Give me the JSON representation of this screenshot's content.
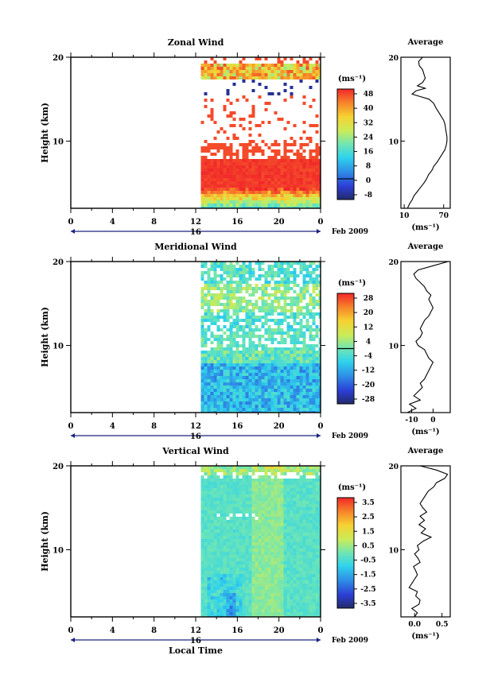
{
  "chart_data": [
    {
      "type": "heatmap",
      "title": "Zonal Wind",
      "ylabel": "Height (km)",
      "yticks": [
        "20",
        "10"
      ],
      "ylim": [
        2,
        20
      ],
      "xticks": [
        "0",
        "4",
        "8",
        "12",
        "16",
        "20",
        "0"
      ],
      "xlim": [
        0,
        24
      ],
      "date_day": "16",
      "date_label": "Feb 2009",
      "data_start_hour": 12.5,
      "colorbar": {
        "unit": "(ms⁻¹)",
        "ticks": [
          "48",
          "40",
          "32",
          "24",
          "16",
          "8",
          "0",
          "-8"
        ],
        "range": [
          -12,
          52
        ],
        "zero_contour": 0
      },
      "profile": {
        "title": "Average",
        "unit": "(ms⁻¹)",
        "xticks": [
          "10",
          "70"
        ],
        "yticks": [
          "20",
          "10"
        ],
        "xlim": [
          5,
          80
        ],
        "ylim": [
          2,
          20
        ],
        "heights": [
          2.0,
          2.5,
          3.0,
          3.5,
          4.0,
          4.5,
          5.0,
          5.5,
          6.0,
          6.5,
          7.0,
          7.5,
          8.0,
          8.5,
          9.0,
          9.5,
          10.0,
          10.5,
          11.0,
          11.5,
          12.0,
          12.5,
          13.0,
          13.5,
          14.0,
          14.5,
          15.0,
          15.3,
          15.6,
          16.0,
          16.3,
          16.6,
          17.0,
          17.5,
          18.0,
          18.5,
          19.0,
          19.5,
          20.0
        ],
        "values": [
          15,
          18,
          22,
          25,
          30,
          35,
          40,
          44,
          47,
          52,
          55,
          60,
          64,
          68,
          72,
          74,
          75,
          75,
          74,
          73,
          72,
          70,
          66,
          62,
          58,
          55,
          48,
          35,
          22,
          28,
          42,
          30,
          38,
          42,
          40,
          38,
          33,
          32,
          38
        ]
      }
    },
    {
      "type": "heatmap",
      "title": "Meridional Wind",
      "ylabel": "Height (km)",
      "yticks": [
        "20",
        "10"
      ],
      "ylim": [
        2,
        20
      ],
      "xticks": [
        "0",
        "4",
        "8",
        "12",
        "16",
        "20",
        "0"
      ],
      "xlim": [
        0,
        24
      ],
      "date_day": "16",
      "date_label": "Feb 2009",
      "data_start_hour": 12.5,
      "colorbar": {
        "unit": "(ms⁻¹)",
        "ticks": [
          "28",
          "20",
          "12",
          "4",
          "-4",
          "-12",
          "-20",
          "-28"
        ],
        "range": [
          -32,
          32
        ],
        "zero_contour": 0
      },
      "profile": {
        "title": "Average",
        "unit": "(ms⁻¹)",
        "xticks": [
          "-10",
          "0"
        ],
        "yticks": [
          "20",
          "10"
        ],
        "xlim": [
          -15,
          8
        ],
        "ylim": [
          2,
          20
        ],
        "heights": [
          2.0,
          2.5,
          3.0,
          3.5,
          4.0,
          4.5,
          5.0,
          5.5,
          6.0,
          6.5,
          7.0,
          7.5,
          8.0,
          8.5,
          9.0,
          9.5,
          10.0,
          10.5,
          11.0,
          11.5,
          12.0,
          12.5,
          13.0,
          13.5,
          14.0,
          14.5,
          15.0,
          15.5,
          16.0,
          16.5,
          17.0,
          17.5,
          18.0,
          18.5,
          19.0,
          19.5,
          20.0
        ],
        "values": [
          -12,
          -8,
          -11,
          -6,
          -9,
          -7,
          -5,
          -6,
          -4,
          -3,
          -2,
          -1,
          0,
          -2,
          -3,
          -4,
          -7,
          -8,
          -6,
          -5,
          -6,
          -5,
          -4,
          -2,
          -1,
          0,
          -1,
          -2,
          -1,
          -3,
          -4,
          -6,
          -8,
          -9,
          -7,
          0,
          7
        ]
      }
    },
    {
      "type": "heatmap",
      "title": "Vertical Wind",
      "ylabel": "Height (km)",
      "xlabel": "Local Time",
      "yticks": [
        "20",
        "10"
      ],
      "ylim": [
        2,
        20
      ],
      "xticks": [
        "0",
        "4",
        "8",
        "12",
        "16",
        "20",
        "0"
      ],
      "xlim": [
        0,
        24
      ],
      "date_day": "16",
      "date_label": "Feb 2009",
      "data_start_hour": 12.5,
      "colorbar": {
        "unit": "(ms⁻¹)",
        "ticks": [
          "3.5",
          "2.5",
          "1.5",
          "0.5",
          "-0.5",
          "-1.5",
          "-2.5",
          "-3.5"
        ],
        "range": [
          -4,
          4
        ]
      },
      "profile": {
        "title": "Average",
        "unit": "(ms⁻¹)",
        "xticks": [
          "0.0",
          "0.5"
        ],
        "yticks": [
          "20",
          "10"
        ],
        "xlim": [
          -0.25,
          0.65
        ],
        "ylim": [
          2,
          20
        ],
        "heights": [
          2.0,
          2.5,
          3.0,
          3.5,
          4.0,
          4.5,
          5.0,
          5.5,
          6.0,
          6.5,
          7.0,
          7.5,
          8.0,
          8.5,
          9.0,
          9.5,
          10.0,
          10.5,
          11.0,
          11.5,
          12.0,
          12.5,
          13.0,
          13.5,
          14.0,
          14.5,
          15.0,
          15.5,
          16.0,
          16.5,
          17.0,
          17.5,
          18.0,
          18.5,
          19.0,
          19.5,
          20.0
        ],
        "values": [
          0.0,
          0.05,
          -0.05,
          0.08,
          0.1,
          0.02,
          0.05,
          -0.1,
          -0.05,
          0.0,
          0.05,
          0.02,
          -0.02,
          0.1,
          0.06,
          0.0,
          0.08,
          0.05,
          0.15,
          0.3,
          0.12,
          0.2,
          0.08,
          0.18,
          0.1,
          0.22,
          0.15,
          0.1,
          0.15,
          0.2,
          0.25,
          0.35,
          0.4,
          0.55,
          0.6,
          0.4,
          0.1
        ]
      }
    }
  ]
}
